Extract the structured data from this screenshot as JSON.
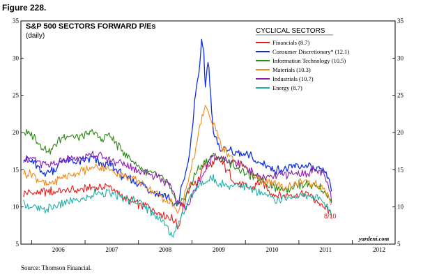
{
  "figure_label": "Figure 228.",
  "source_note": "Source: Thomson Financial.",
  "chart_data": {
    "type": "line",
    "title": "S&P 500 SECTORS FORWARD P/Es",
    "subtitle": "(daily)",
    "legend_title": "CYCLICAL SECTORS",
    "watermark": "yardeni.com",
    "annotation": "8/10",
    "ylim": [
      5,
      35
    ],
    "yticks": [
      5,
      10,
      15,
      20,
      25,
      30,
      35
    ],
    "x_range": [
      2005.8,
      2012.8
    ],
    "xlabels": [
      "2006",
      "2007",
      "2008",
      "2009",
      "2010",
      "2011",
      "2012"
    ],
    "series": [
      {
        "name": "Financials (8.7)",
        "color": "#e81c1c",
        "points": [
          [
            2005.85,
            11.8
          ],
          [
            2006.2,
            12
          ],
          [
            2006.6,
            12.2
          ],
          [
            2006.9,
            12.3
          ],
          [
            2007.2,
            12.6
          ],
          [
            2007.45,
            12.8
          ],
          [
            2007.6,
            11.8
          ],
          [
            2007.8,
            11
          ],
          [
            2008.0,
            10.3
          ],
          [
            2008.2,
            10
          ],
          [
            2008.4,
            9.2
          ],
          [
            2008.6,
            8.5
          ],
          [
            2008.7,
            8
          ],
          [
            2008.75,
            7.2
          ],
          [
            2008.8,
            9
          ],
          [
            2008.9,
            11.5
          ],
          [
            2009.0,
            13.5
          ],
          [
            2009.1,
            13
          ],
          [
            2009.2,
            15.5
          ],
          [
            2009.35,
            15.5
          ],
          [
            2009.5,
            16.5
          ],
          [
            2009.65,
            15
          ],
          [
            2009.8,
            13.5
          ],
          [
            2009.95,
            13
          ],
          [
            2010.1,
            12.5
          ],
          [
            2010.3,
            13.5
          ],
          [
            2010.45,
            12
          ],
          [
            2010.6,
            11.5
          ],
          [
            2010.8,
            11.5
          ],
          [
            2011.0,
            11.6
          ],
          [
            2011.15,
            11.8
          ],
          [
            2011.3,
            11
          ],
          [
            2011.45,
            10
          ],
          [
            2011.55,
            9.5
          ],
          [
            2011.61,
            8.7
          ]
        ]
      },
      {
        "name": "Consumer Discretionary* (12.1)",
        "color": "#1030e0",
        "points": [
          [
            2005.85,
            16.5
          ],
          [
            2006.05,
            16
          ],
          [
            2006.2,
            14.5
          ],
          [
            2006.45,
            15
          ],
          [
            2006.6,
            16.5
          ],
          [
            2006.8,
            16
          ],
          [
            2007.0,
            16.3
          ],
          [
            2007.15,
            16.5
          ],
          [
            2007.3,
            15.8
          ],
          [
            2007.5,
            15.5
          ],
          [
            2007.7,
            14.2
          ],
          [
            2007.9,
            13.5
          ],
          [
            2008.1,
            12.8
          ],
          [
            2008.3,
            12
          ],
          [
            2008.5,
            11.5
          ],
          [
            2008.6,
            11
          ],
          [
            2008.7,
            10
          ],
          [
            2008.75,
            10.5
          ],
          [
            2008.8,
            12.5
          ],
          [
            2008.9,
            15
          ],
          [
            2008.95,
            17
          ],
          [
            2009.0,
            20
          ],
          [
            2009.05,
            24
          ],
          [
            2009.1,
            27
          ],
          [
            2009.15,
            29
          ],
          [
            2009.18,
            32
          ],
          [
            2009.22,
            31
          ],
          [
            2009.25,
            26
          ],
          [
            2009.3,
            30
          ],
          [
            2009.35,
            25
          ],
          [
            2009.4,
            20
          ],
          [
            2009.5,
            18
          ],
          [
            2009.65,
            17.8
          ],
          [
            2009.8,
            17.3
          ],
          [
            2009.95,
            17
          ],
          [
            2010.1,
            16.8
          ],
          [
            2010.2,
            16
          ],
          [
            2010.35,
            15.8
          ],
          [
            2010.5,
            15
          ],
          [
            2010.65,
            15
          ],
          [
            2010.8,
            15.2
          ],
          [
            2011.0,
            15.5
          ],
          [
            2011.15,
            15.5
          ],
          [
            2011.3,
            15
          ],
          [
            2011.45,
            14.8
          ],
          [
            2011.55,
            14
          ],
          [
            2011.61,
            12.1
          ]
        ]
      },
      {
        "name": "Information Technology (10.5)",
        "color": "#2a8a12",
        "points": [
          [
            2005.85,
            20
          ],
          [
            2006.0,
            19.8
          ],
          [
            2006.2,
            18
          ],
          [
            2006.35,
            17.5
          ],
          [
            2006.5,
            19
          ],
          [
            2006.7,
            19.8
          ],
          [
            2006.85,
            19.3
          ],
          [
            2007.0,
            19.5
          ],
          [
            2007.15,
            20.2
          ],
          [
            2007.3,
            19
          ],
          [
            2007.45,
            19.8
          ],
          [
            2007.55,
            18.7
          ],
          [
            2007.7,
            17.5
          ],
          [
            2007.85,
            16.5
          ],
          [
            2008.0,
            15.5
          ],
          [
            2008.2,
            14.5
          ],
          [
            2008.4,
            14
          ],
          [
            2008.55,
            13
          ],
          [
            2008.65,
            11.5
          ],
          [
            2008.75,
            10.5
          ],
          [
            2008.85,
            11
          ],
          [
            2008.95,
            12.5
          ],
          [
            2009.1,
            15
          ],
          [
            2009.25,
            16
          ],
          [
            2009.4,
            17
          ],
          [
            2009.55,
            16.5
          ],
          [
            2009.7,
            16
          ],
          [
            2009.85,
            15.2
          ],
          [
            2010.0,
            14.5
          ],
          [
            2010.2,
            14
          ],
          [
            2010.4,
            13.2
          ],
          [
            2010.6,
            12.5
          ],
          [
            2010.8,
            12.5
          ],
          [
            2011.0,
            13
          ],
          [
            2011.2,
            13
          ],
          [
            2011.4,
            12.5
          ],
          [
            2011.55,
            11.5
          ],
          [
            2011.61,
            10.5
          ]
        ]
      },
      {
        "name": "Materials (10.3)",
        "color": "#f08a1c",
        "points": [
          [
            2005.85,
            14.5
          ],
          [
            2006.0,
            14.5
          ],
          [
            2006.15,
            13.5
          ],
          [
            2006.3,
            12.8
          ],
          [
            2006.45,
            13.5
          ],
          [
            2006.65,
            14.2
          ],
          [
            2006.85,
            14.5
          ],
          [
            2007.05,
            15
          ],
          [
            2007.2,
            15.5
          ],
          [
            2007.4,
            15.2
          ],
          [
            2007.6,
            14.5
          ],
          [
            2007.8,
            14
          ],
          [
            2008.0,
            13.5
          ],
          [
            2008.2,
            12.5
          ],
          [
            2008.4,
            11.5
          ],
          [
            2008.55,
            10.5
          ],
          [
            2008.6,
            11
          ],
          [
            2008.65,
            10
          ],
          [
            2008.75,
            9.5
          ],
          [
            2008.85,
            11
          ],
          [
            2008.95,
            14
          ],
          [
            2009.05,
            17
          ],
          [
            2009.15,
            21
          ],
          [
            2009.25,
            23.5
          ],
          [
            2009.35,
            22
          ],
          [
            2009.45,
            20.5
          ],
          [
            2009.55,
            18
          ],
          [
            2009.7,
            17
          ],
          [
            2009.85,
            16
          ],
          [
            2010.0,
            15.5
          ],
          [
            2010.15,
            14
          ],
          [
            2010.3,
            13.5
          ],
          [
            2010.5,
            13.5
          ],
          [
            2010.7,
            12.5
          ],
          [
            2010.9,
            13
          ],
          [
            2011.1,
            13.5
          ],
          [
            2011.3,
            13
          ],
          [
            2011.45,
            12.5
          ],
          [
            2011.55,
            11.5
          ],
          [
            2011.61,
            10.3
          ]
        ]
      },
      {
        "name": "Industrials (10.7)",
        "color": "#8a1cb0",
        "points": [
          [
            2005.85,
            16.5
          ],
          [
            2006.05,
            16.3
          ],
          [
            2006.2,
            15.8
          ],
          [
            2006.4,
            15.5
          ],
          [
            2006.6,
            16.3
          ],
          [
            2006.8,
            16.5
          ],
          [
            2007.0,
            16.8
          ],
          [
            2007.2,
            17
          ],
          [
            2007.4,
            16.5
          ],
          [
            2007.6,
            16
          ],
          [
            2007.8,
            15.5
          ],
          [
            2008.0,
            15
          ],
          [
            2008.2,
            14.5
          ],
          [
            2008.4,
            14
          ],
          [
            2008.55,
            13
          ],
          [
            2008.65,
            12
          ],
          [
            2008.75,
            10.5
          ],
          [
            2008.85,
            10
          ],
          [
            2008.95,
            10.5
          ],
          [
            2009.1,
            13
          ],
          [
            2009.25,
            15
          ],
          [
            2009.4,
            17
          ],
          [
            2009.55,
            16.5
          ],
          [
            2009.7,
            16
          ],
          [
            2009.85,
            15.8
          ],
          [
            2010.0,
            15.5
          ],
          [
            2010.15,
            14.5
          ],
          [
            2010.3,
            14
          ],
          [
            2010.5,
            14
          ],
          [
            2010.7,
            14.3
          ],
          [
            2010.9,
            14.5
          ],
          [
            2011.1,
            14.5
          ],
          [
            2011.3,
            15
          ],
          [
            2011.45,
            14.5
          ],
          [
            2011.55,
            13
          ],
          [
            2011.61,
            10.7
          ]
        ]
      },
      {
        "name": "Energy (8.7)",
        "color": "#20b0a8",
        "points": [
          [
            2005.85,
            10.5
          ],
          [
            2006.0,
            10
          ],
          [
            2006.2,
            9.5
          ],
          [
            2006.4,
            10
          ],
          [
            2006.6,
            10.5
          ],
          [
            2006.8,
            10.8
          ],
          [
            2007.0,
            11
          ],
          [
            2007.2,
            12
          ],
          [
            2007.4,
            12
          ],
          [
            2007.6,
            11.5
          ],
          [
            2007.8,
            11
          ],
          [
            2008.0,
            10.8
          ],
          [
            2008.2,
            9.5
          ],
          [
            2008.4,
            8.5
          ],
          [
            2008.55,
            7
          ],
          [
            2008.65,
            6
          ],
          [
            2008.75,
            8
          ],
          [
            2008.85,
            9.5
          ],
          [
            2008.95,
            11
          ],
          [
            2009.1,
            12.5
          ],
          [
            2009.25,
            13.5
          ],
          [
            2009.4,
            13.8
          ],
          [
            2009.55,
            13.2
          ],
          [
            2009.7,
            12.8
          ],
          [
            2009.85,
            13
          ],
          [
            2010.0,
            12.8
          ],
          [
            2010.2,
            12
          ],
          [
            2010.4,
            11.5
          ],
          [
            2010.6,
            11
          ],
          [
            2010.8,
            11.3
          ],
          [
            2011.0,
            11.5
          ],
          [
            2011.2,
            11.5
          ],
          [
            2011.4,
            11
          ],
          [
            2011.55,
            10
          ],
          [
            2011.61,
            8.7
          ]
        ]
      }
    ]
  }
}
